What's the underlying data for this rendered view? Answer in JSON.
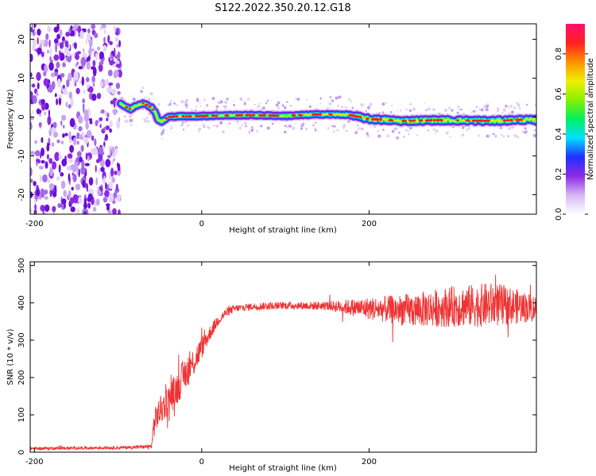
{
  "title": "S122.2022.350.20.12.G18",
  "chart_data": [
    {
      "type": "heatmap",
      "title": "",
      "xlabel": "Height of straight line (km)",
      "ylabel": "Frequency (Hz)",
      "xlim": [
        -205,
        400
      ],
      "ylim": [
        -25,
        24
      ],
      "xticks": [
        -200,
        0,
        200
      ],
      "xtick_labels": [
        "-200",
        "0",
        "200"
      ],
      "yticks": [
        -20,
        -10,
        0,
        10,
        20
      ],
      "ytick_labels": [
        "-20",
        "-10",
        "0",
        "10",
        "20"
      ],
      "noise_region_x": [
        -205,
        -97
      ],
      "ridge": {
        "x": [
          -97,
          -90,
          -85,
          -80,
          -75,
          -70,
          -65,
          -60,
          -55,
          -52,
          -48,
          -45,
          -40,
          -30,
          -10,
          20,
          60,
          100,
          140,
          175,
          200,
          240,
          280,
          320,
          350,
          380,
          400
        ],
        "frequency": [
          3.5,
          2.5,
          2.0,
          2.8,
          3.2,
          3.6,
          3.0,
          2.5,
          1.0,
          -0.8,
          -1.2,
          -0.8,
          0.0,
          0.2,
          0.2,
          0.4,
          0.5,
          0.3,
          0.7,
          0.6,
          -0.5,
          -1.0,
          -0.8,
          -0.9,
          -1.0,
          -0.7,
          -0.8
        ]
      },
      "grid": false,
      "colorbar": {
        "label": "Normalized spectral amplitude",
        "range": [
          0,
          0.95
        ],
        "ticks": [
          0.0,
          0.2,
          0.4,
          0.6,
          0.8
        ],
        "tick_labels": [
          "0.0",
          "0.2",
          "0.4",
          "0.6",
          "0.8"
        ],
        "colors": [
          "#ffffff",
          "#d8b8f4",
          "#8a2be2",
          "#2030ff",
          "#00e0ff",
          "#00f060",
          "#88f000",
          "#f0f000",
          "#ff9000",
          "#ff2020",
          "#ff1070"
        ]
      },
      "colors": {
        "ridge_core": "#ff2020",
        "ridge_mid": "#00f060",
        "ridge_outer": "#2030ff",
        "noise": "#8a2be2"
      }
    },
    {
      "type": "line",
      "title": "",
      "xlabel": "Height of straight line (km)",
      "ylabel": "SNR (10 * v/v)",
      "xlim": [
        -205,
        400
      ],
      "ylim": [
        0,
        510
      ],
      "xticks": [
        -200,
        0,
        200
      ],
      "xtick_labels": [
        "-200",
        "0",
        "200"
      ],
      "yticks": [
        0,
        100,
        200,
        300,
        400,
        500
      ],
      "ytick_labels": [
        "0",
        "100",
        "200",
        "300",
        "400",
        "500"
      ],
      "grid": false,
      "series": [
        {
          "color": "#ee3333",
          "x": [
            -205,
            -100,
            -60,
            -58,
            -55,
            -50,
            -40,
            -30,
            -20,
            -10,
            0,
            10,
            20,
            30,
            40,
            60,
            80,
            100,
            150,
            200,
            250,
            300,
            350,
            380,
            400
          ],
          "y": [
            10,
            12,
            15,
            60,
            90,
            110,
            140,
            170,
            210,
            240,
            280,
            320,
            355,
            375,
            385,
            390,
            392,
            393,
            392,
            385,
            380,
            390,
            395,
            390,
            385
          ],
          "noise_amplitude": [
            4,
            4,
            5,
            30,
            35,
            40,
            40,
            45,
            45,
            40,
            30,
            20,
            15,
            12,
            10,
            10,
            10,
            10,
            12,
            30,
            45,
            55,
            60,
            45,
            35
          ]
        }
      ]
    }
  ]
}
